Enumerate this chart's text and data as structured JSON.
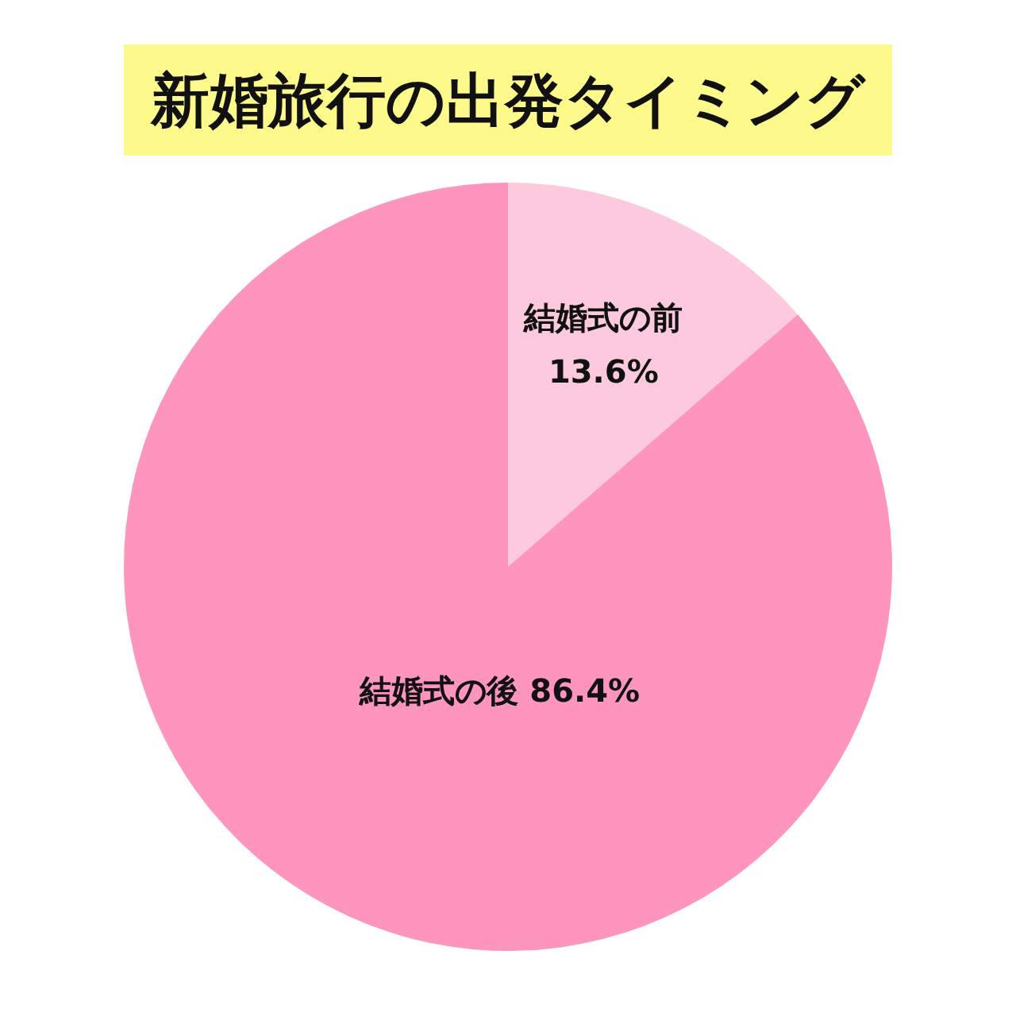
{
  "chart_data": {
    "type": "pie",
    "title": "新婚旅行の出発タイミング",
    "categories": [
      "結婚式の前",
      "結婚式の後"
    ],
    "values": [
      13.6,
      86.4
    ],
    "colors": [
      "#fdc9dd",
      "#fd95bd"
    ],
    "value_labels": [
      "13.6%",
      "86.4%"
    ]
  }
}
